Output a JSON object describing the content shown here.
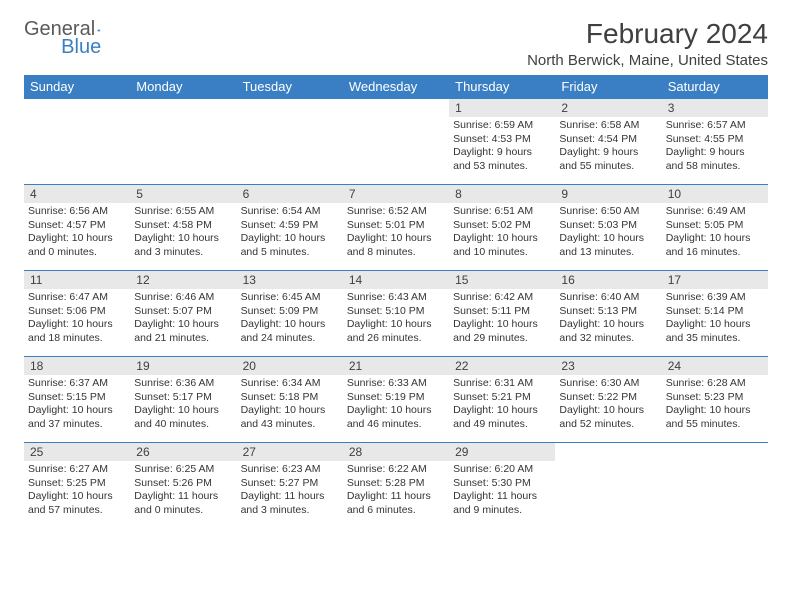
{
  "brand": {
    "part1": "General",
    "part2": "Blue"
  },
  "title": "February 2024",
  "subtitle": "North Berwick, Maine, United States",
  "colors": {
    "header_bg": "#3a7fc4",
    "header_text": "#ffffff",
    "daynum_bg": "#e8e8e8",
    "text": "#404040",
    "row_border": "#3a7fc4"
  },
  "daysOfWeek": [
    "Sunday",
    "Monday",
    "Tuesday",
    "Wednesday",
    "Thursday",
    "Friday",
    "Saturday"
  ],
  "weeks": [
    [
      null,
      null,
      null,
      null,
      {
        "n": "1",
        "sunrise": "6:59 AM",
        "sunset": "4:53 PM",
        "daylight": "9 hours and 53 minutes."
      },
      {
        "n": "2",
        "sunrise": "6:58 AM",
        "sunset": "4:54 PM",
        "daylight": "9 hours and 55 minutes."
      },
      {
        "n": "3",
        "sunrise": "6:57 AM",
        "sunset": "4:55 PM",
        "daylight": "9 hours and 58 minutes."
      }
    ],
    [
      {
        "n": "4",
        "sunrise": "6:56 AM",
        "sunset": "4:57 PM",
        "daylight": "10 hours and 0 minutes."
      },
      {
        "n": "5",
        "sunrise": "6:55 AM",
        "sunset": "4:58 PM",
        "daylight": "10 hours and 3 minutes."
      },
      {
        "n": "6",
        "sunrise": "6:54 AM",
        "sunset": "4:59 PM",
        "daylight": "10 hours and 5 minutes."
      },
      {
        "n": "7",
        "sunrise": "6:52 AM",
        "sunset": "5:01 PM",
        "daylight": "10 hours and 8 minutes."
      },
      {
        "n": "8",
        "sunrise": "6:51 AM",
        "sunset": "5:02 PM",
        "daylight": "10 hours and 10 minutes."
      },
      {
        "n": "9",
        "sunrise": "6:50 AM",
        "sunset": "5:03 PM",
        "daylight": "10 hours and 13 minutes."
      },
      {
        "n": "10",
        "sunrise": "6:49 AM",
        "sunset": "5:05 PM",
        "daylight": "10 hours and 16 minutes."
      }
    ],
    [
      {
        "n": "11",
        "sunrise": "6:47 AM",
        "sunset": "5:06 PM",
        "daylight": "10 hours and 18 minutes."
      },
      {
        "n": "12",
        "sunrise": "6:46 AM",
        "sunset": "5:07 PM",
        "daylight": "10 hours and 21 minutes."
      },
      {
        "n": "13",
        "sunrise": "6:45 AM",
        "sunset": "5:09 PM",
        "daylight": "10 hours and 24 minutes."
      },
      {
        "n": "14",
        "sunrise": "6:43 AM",
        "sunset": "5:10 PM",
        "daylight": "10 hours and 26 minutes."
      },
      {
        "n": "15",
        "sunrise": "6:42 AM",
        "sunset": "5:11 PM",
        "daylight": "10 hours and 29 minutes."
      },
      {
        "n": "16",
        "sunrise": "6:40 AM",
        "sunset": "5:13 PM",
        "daylight": "10 hours and 32 minutes."
      },
      {
        "n": "17",
        "sunrise": "6:39 AM",
        "sunset": "5:14 PM",
        "daylight": "10 hours and 35 minutes."
      }
    ],
    [
      {
        "n": "18",
        "sunrise": "6:37 AM",
        "sunset": "5:15 PM",
        "daylight": "10 hours and 37 minutes."
      },
      {
        "n": "19",
        "sunrise": "6:36 AM",
        "sunset": "5:17 PM",
        "daylight": "10 hours and 40 minutes."
      },
      {
        "n": "20",
        "sunrise": "6:34 AM",
        "sunset": "5:18 PM",
        "daylight": "10 hours and 43 minutes."
      },
      {
        "n": "21",
        "sunrise": "6:33 AM",
        "sunset": "5:19 PM",
        "daylight": "10 hours and 46 minutes."
      },
      {
        "n": "22",
        "sunrise": "6:31 AM",
        "sunset": "5:21 PM",
        "daylight": "10 hours and 49 minutes."
      },
      {
        "n": "23",
        "sunrise": "6:30 AM",
        "sunset": "5:22 PM",
        "daylight": "10 hours and 52 minutes."
      },
      {
        "n": "24",
        "sunrise": "6:28 AM",
        "sunset": "5:23 PM",
        "daylight": "10 hours and 55 minutes."
      }
    ],
    [
      {
        "n": "25",
        "sunrise": "6:27 AM",
        "sunset": "5:25 PM",
        "daylight": "10 hours and 57 minutes."
      },
      {
        "n": "26",
        "sunrise": "6:25 AM",
        "sunset": "5:26 PM",
        "daylight": "11 hours and 0 minutes."
      },
      {
        "n": "27",
        "sunrise": "6:23 AM",
        "sunset": "5:27 PM",
        "daylight": "11 hours and 3 minutes."
      },
      {
        "n": "28",
        "sunrise": "6:22 AM",
        "sunset": "5:28 PM",
        "daylight": "11 hours and 6 minutes."
      },
      {
        "n": "29",
        "sunrise": "6:20 AM",
        "sunset": "5:30 PM",
        "daylight": "11 hours and 9 minutes."
      },
      null,
      null
    ]
  ],
  "labels": {
    "sunrise": "Sunrise:",
    "sunset": "Sunset:",
    "daylight": "Daylight:"
  }
}
